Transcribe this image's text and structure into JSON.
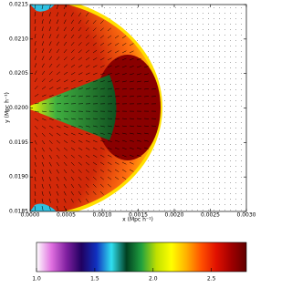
{
  "chart_data": {
    "type": "image",
    "xlabel": "x (Mpc h⁻¹)",
    "ylabel": "y (Mpc h⁻¹)",
    "xlim": [
      0,
      0.003
    ],
    "xticks": [
      {
        "value": 0,
        "label": "0.0000"
      },
      0.0005,
      {
        "value": 0.001,
        "label": "0.0010"
      },
      0.0015,
      {
        "value": 0.002,
        "label": "0.0020"
      },
      0.0025,
      {
        "value": 0.003,
        "label": "0.0030"
      }
    ],
    "ylim": [
      0.0185,
      0.0215
    ],
    "yticks": [
      0.0185,
      {
        "value": 0.019,
        "label": "0.0190"
      },
      0.0195,
      {
        "value": 0.02,
        "label": "0.0200"
      },
      0.0205,
      {
        "value": 0.021,
        "label": "0.0210"
      },
      0.0215
    ],
    "colorbar": {
      "lim": [
        1.0,
        2.8
      ],
      "ticks": [
        {
          "value": 1.0,
          "label": "1.0"
        },
        1.5,
        {
          "value": 2.0,
          "label": "2.0"
        },
        2.5
      ],
      "colors": [
        "#ffffff",
        "#e070e0",
        "#8020a0",
        "#200060",
        "#1030c0",
        "#30e0f0",
        "#004020",
        "#20a040",
        "#c0e000",
        "#ffff00",
        "#ffb000",
        "#ff5000",
        "#e01000",
        "#a00000",
        "#600000"
      ]
    }
  }
}
